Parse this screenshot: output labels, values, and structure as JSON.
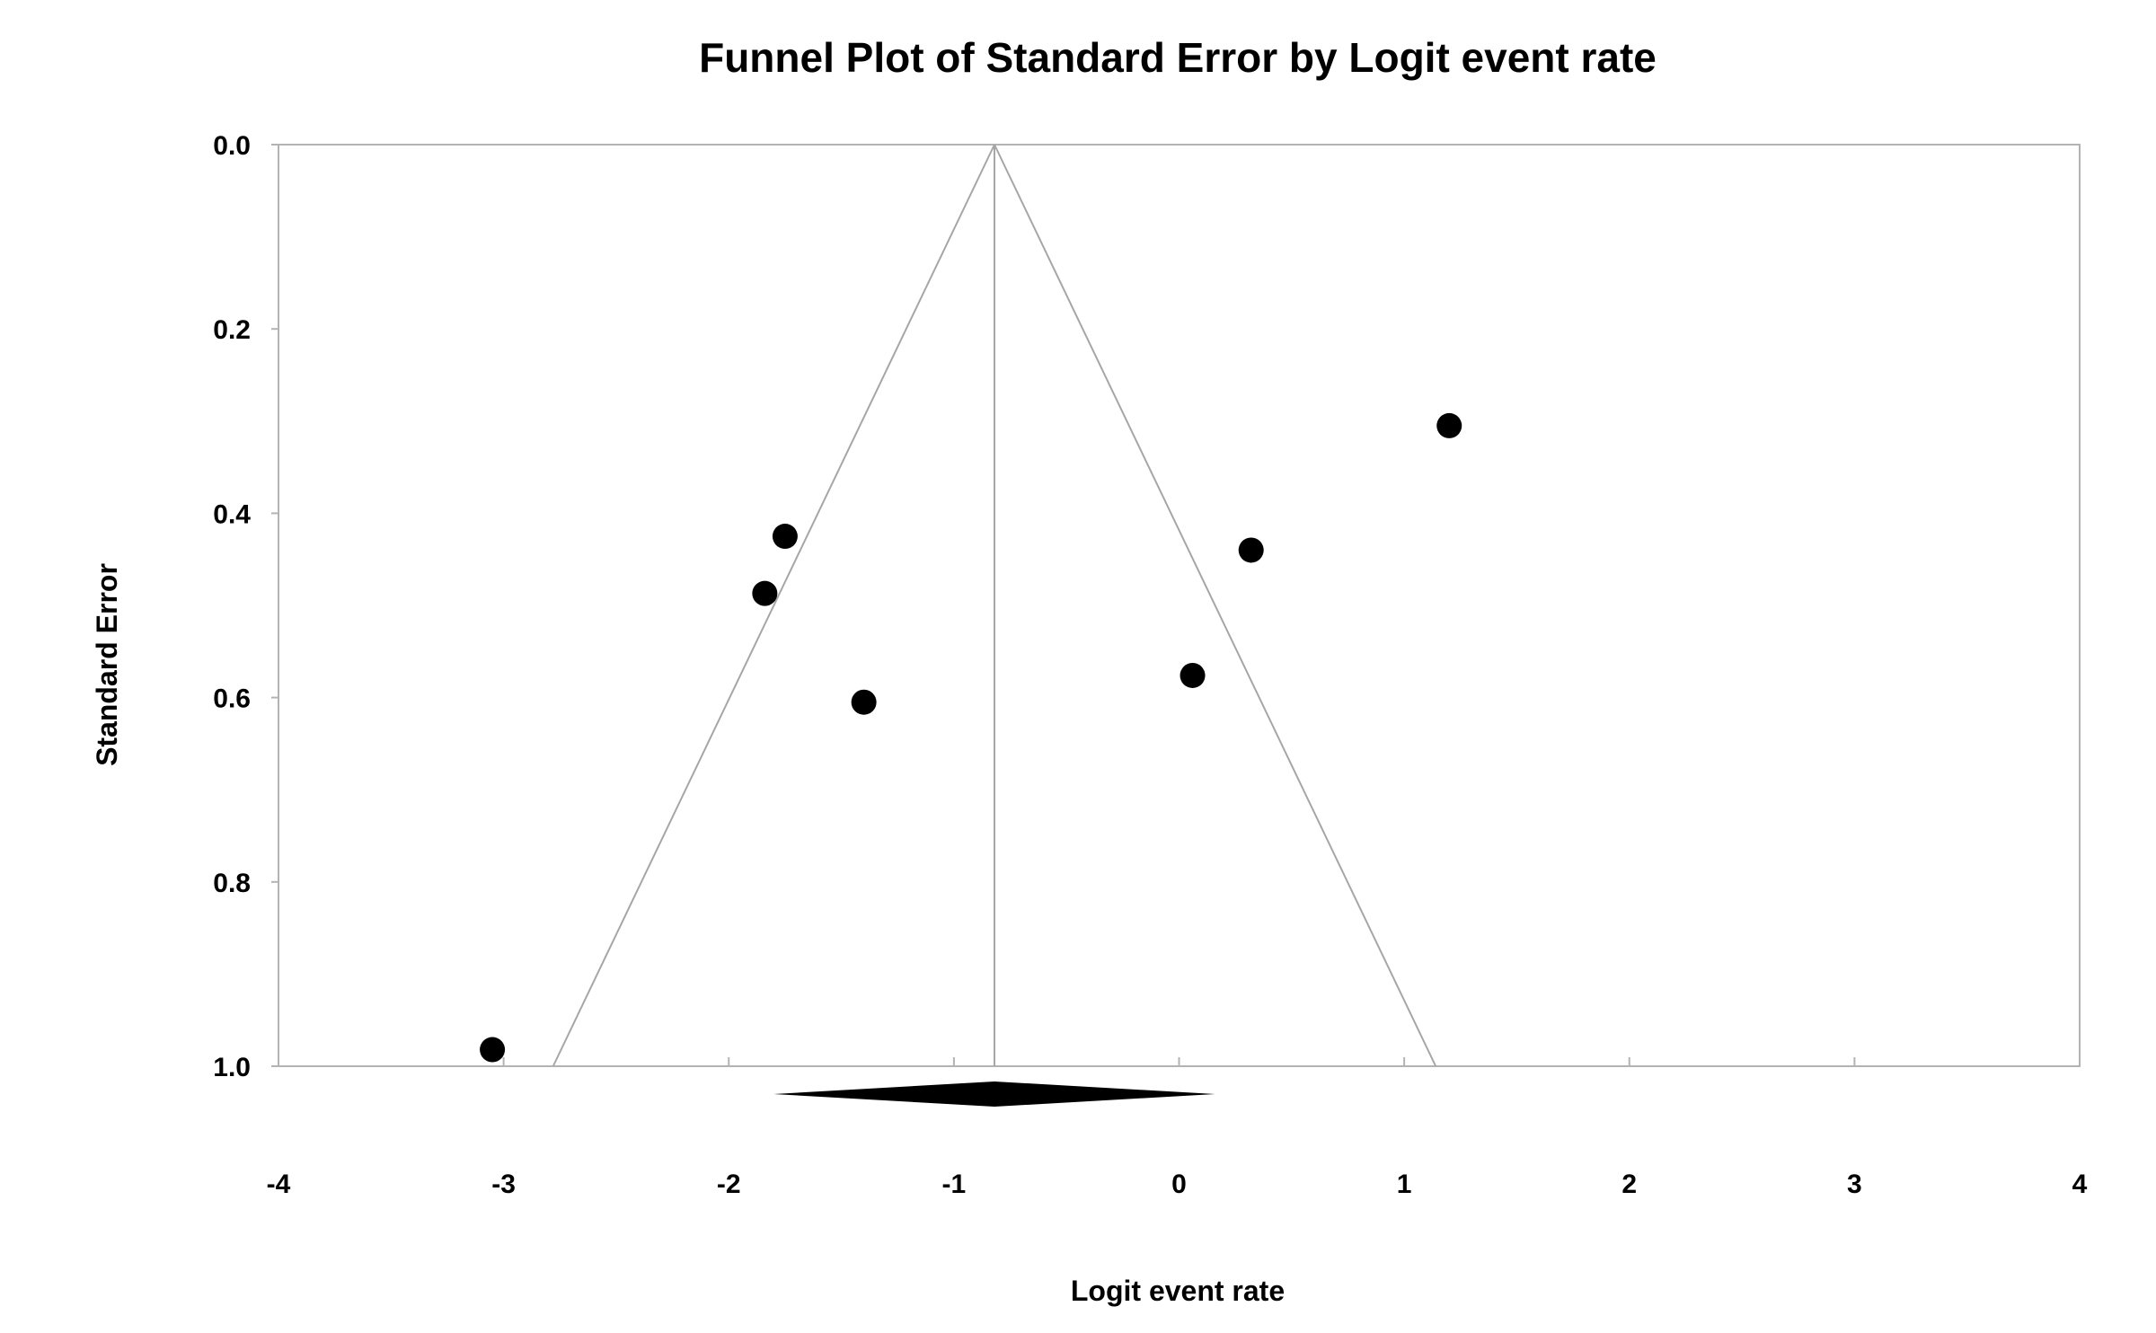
{
  "chart_data": {
    "type": "scatter",
    "title": "Funnel Plot of Standard Error by Logit event rate",
    "xlabel": "Logit event rate",
    "ylabel": "Standard Error",
    "xlim": [
      -4,
      4
    ],
    "ylim": [
      0.0,
      1.0
    ],
    "y_inverted": true,
    "x_ticks": [
      "-4",
      "-3",
      "-2",
      "-1",
      "0",
      "1",
      "2",
      "3",
      "4"
    ],
    "y_ticks": [
      "0.0",
      "0.2",
      "0.4",
      "0.6",
      "0.8",
      "1.0"
    ],
    "grid": false,
    "legend": "none",
    "points": [
      {
        "x": 1.2,
        "y": 0.305
      },
      {
        "x": -1.75,
        "y": 0.425
      },
      {
        "x": 0.32,
        "y": 0.44
      },
      {
        "x": -1.84,
        "y": 0.487
      },
      {
        "x": 0.06,
        "y": 0.576
      },
      {
        "x": -1.4,
        "y": 0.605
      },
      {
        "x": -3.05,
        "y": 0.982
      }
    ],
    "summary_effect": -0.82,
    "funnel_base_se": 1.0,
    "funnel_base": [
      -2.78,
      1.14
    ],
    "diamond": {
      "center": -0.82,
      "lower": -1.8,
      "upper": 0.16
    },
    "colors": {
      "points": "#000000",
      "funnel": "#a6a6a6",
      "axes": "#b3b3b3",
      "diamond": "#000000"
    }
  }
}
